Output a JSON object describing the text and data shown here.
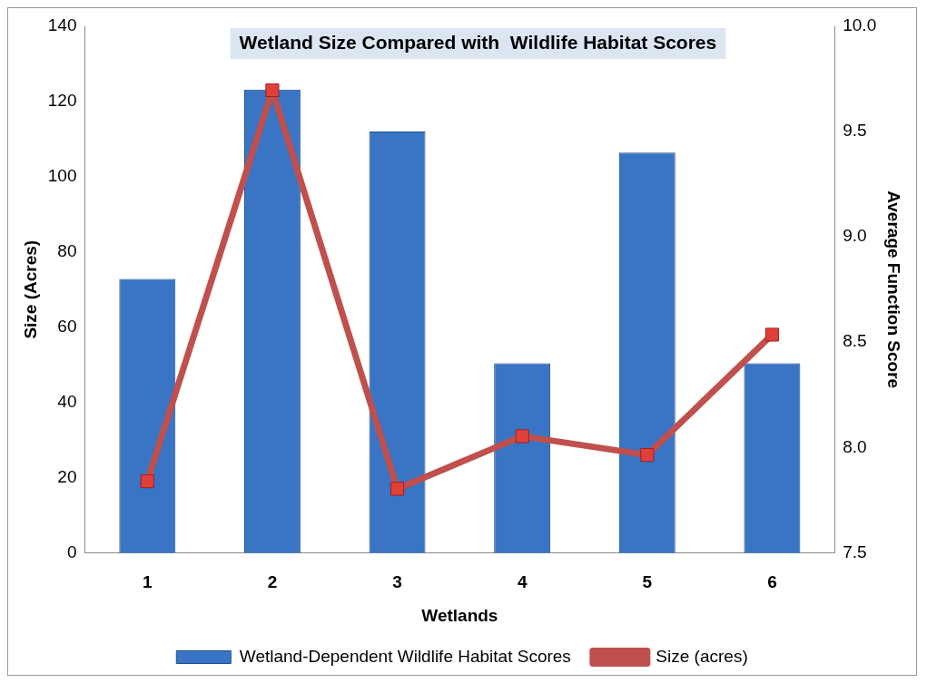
{
  "chart_data": {
    "type": "bar",
    "title": "Wetland Size Compared with  Wildlife Habitat Scores",
    "xlabel": "Wetlands",
    "ylabel": "Size (Acres)",
    "y2label": "Average Function Score",
    "categories": [
      "1",
      "2",
      "3",
      "4",
      "5",
      "6"
    ],
    "series": [
      {
        "name": "Wetland-Dependent Wildlife Habitat Scores",
        "axis": "y2",
        "color": "#3a74c4",
        "values": [
          8.8,
          9.7,
          9.5,
          8.4,
          9.4,
          8.4
        ]
      },
      {
        "name": "Size (acres)",
        "type": "line",
        "axis": "y",
        "color": "#c0504d",
        "marker": "square",
        "values": [
          19,
          123,
          17,
          31,
          26,
          58
        ]
      }
    ],
    "ylim": [
      0,
      140
    ],
    "yticks": [
      0,
      20,
      40,
      60,
      80,
      100,
      120,
      140
    ],
    "y2lim": [
      7.5,
      10
    ],
    "y2ticks": [
      {
        "value": 7.5,
        "label": "7.5"
      },
      {
        "value": 8,
        "label": "8.0"
      },
      {
        "value": 8.5,
        "label": "8.5"
      },
      {
        "value": 9,
        "label": "9.0"
      },
      {
        "value": 9.5,
        "label": "9.5"
      },
      {
        "value": 10,
        "label": "10.0"
      }
    ],
    "grid": false,
    "legend": "bottom"
  }
}
